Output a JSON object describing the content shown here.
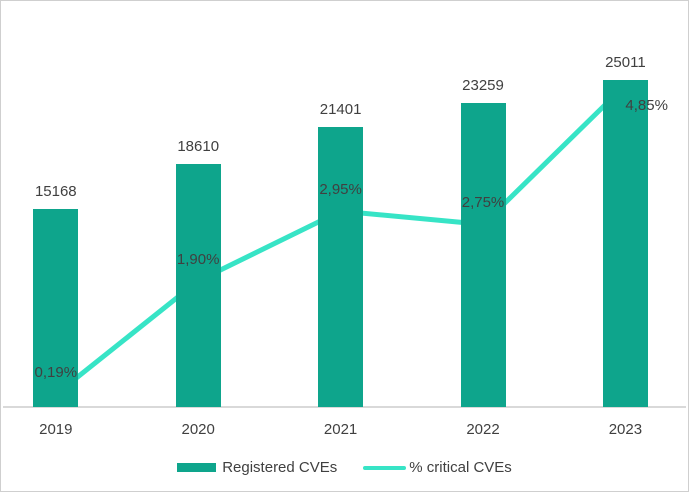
{
  "chart_data": {
    "type": "bar+line",
    "title": "",
    "xlabel": "",
    "ylabel": "",
    "grid": false,
    "legend_position": "bottom",
    "categories": [
      "2019",
      "2020",
      "2021",
      "2022",
      "2023"
    ],
    "series": [
      {
        "name": "Registered CVEs",
        "type": "bar",
        "values": [
          15168,
          18610,
          21401,
          23259,
          25011
        ],
        "labels": [
          "15168",
          "18610",
          "21401",
          "23259",
          "25011"
        ],
        "color": "#0ea58c"
      },
      {
        "name": "% critical CVEs",
        "type": "line",
        "values": [
          0.19,
          1.9,
          2.95,
          2.75,
          4.85
        ],
        "labels": [
          "0,19%",
          "1,90%",
          "2,95%",
          "2,75%",
          "4,85%"
        ],
        "color": "#37e4c6"
      }
    ],
    "bar_axis_range": [
      0,
      25011
    ],
    "line_axis_range_pct": [
      0,
      4.85
    ]
  },
  "colors": {
    "text": "#404040",
    "axis_line": "#d9d9d9",
    "frame_border": "#cfcfcf"
  }
}
